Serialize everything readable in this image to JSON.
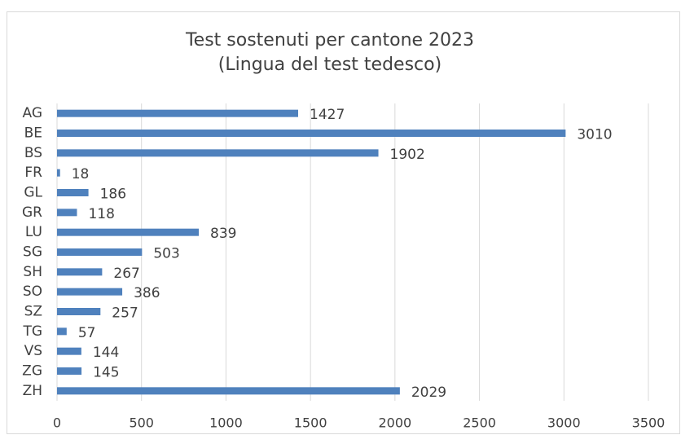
{
  "chart_data": {
    "type": "bar",
    "orientation": "horizontal",
    "title": "Test sostenuti per cantone 2023",
    "subtitle": "(Lingua del test tedesco)",
    "categories": [
      "AG",
      "BE",
      "BS",
      "FR",
      "GL",
      "GR",
      "LU",
      "SG",
      "SH",
      "SO",
      "SZ",
      "TG",
      "VS",
      "ZG",
      "ZH"
    ],
    "values": [
      1427,
      3010,
      1902,
      18,
      186,
      118,
      839,
      503,
      267,
      386,
      257,
      57,
      144,
      145,
      2029
    ],
    "color": "#4f81bd",
    "xlim": [
      0,
      3500
    ],
    "xticks": [
      0,
      500,
      1000,
      1500,
      2000,
      2500,
      3000,
      3500
    ],
    "grid": true
  }
}
